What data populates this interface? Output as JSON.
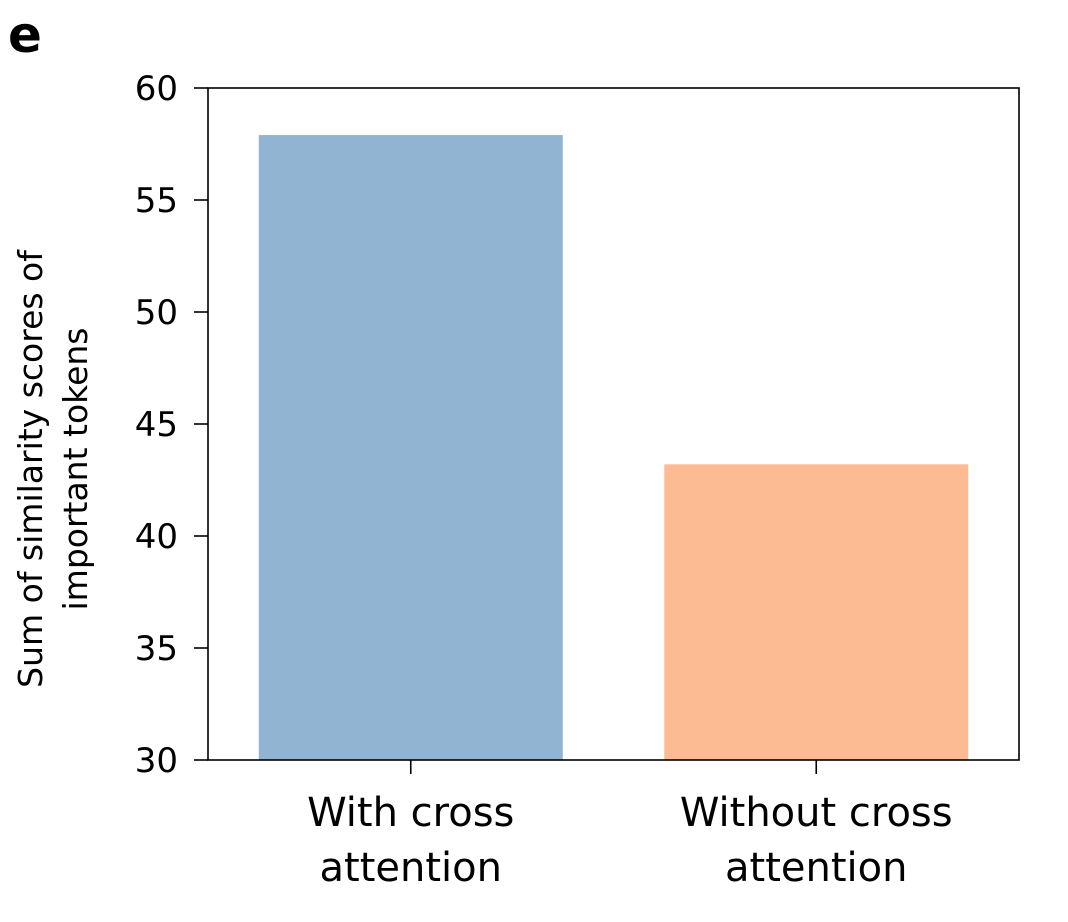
{
  "panel_label": "e",
  "chart_data": {
    "type": "bar",
    "categories": [
      [
        "With cross",
        "attention"
      ],
      [
        "Without cross",
        "attention"
      ]
    ],
    "values": [
      57.9,
      43.2
    ],
    "colors": [
      "#91b4d2",
      "#fdbb93"
    ],
    "ylabel": [
      "Sum of similarity scores of",
      "important tokens"
    ],
    "ylim": [
      30,
      60
    ],
    "yticks": [
      30,
      35,
      40,
      45,
      50,
      55,
      60
    ],
    "grid": false
  }
}
